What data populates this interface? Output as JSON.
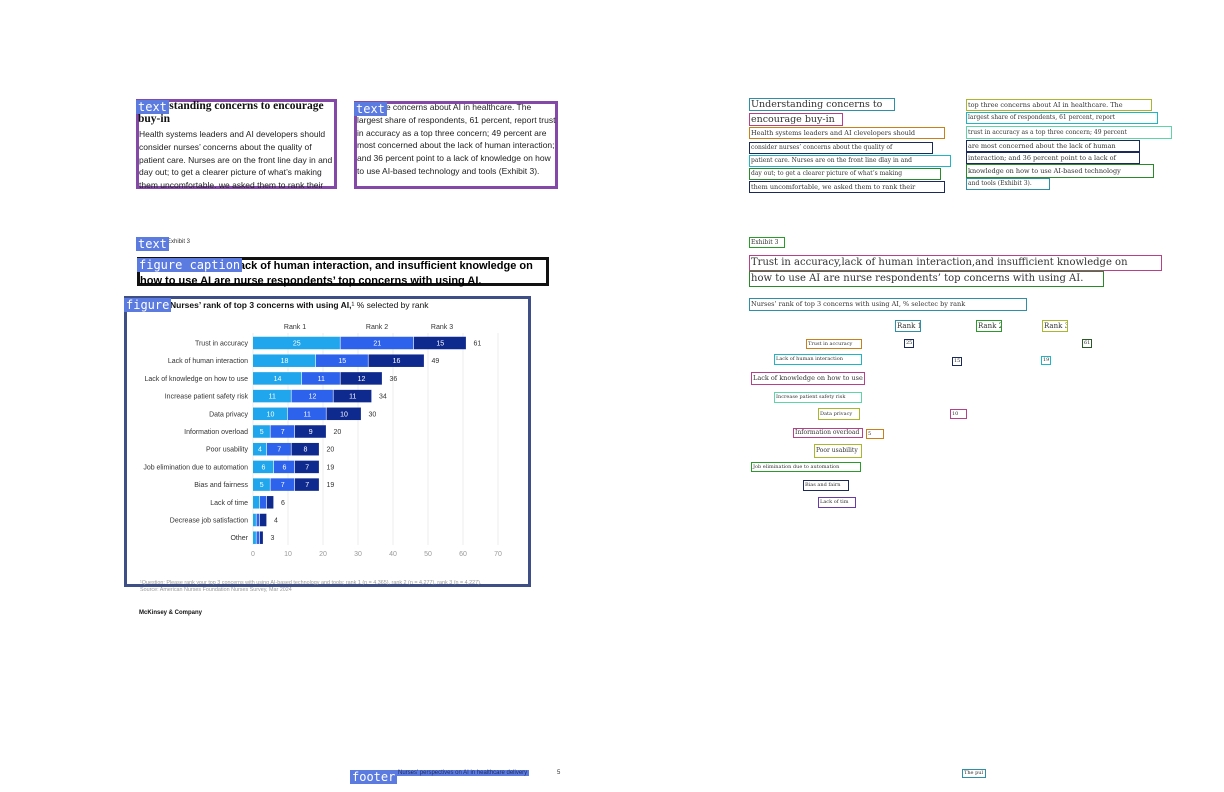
{
  "left_page": {
    "tags": {
      "text": "text",
      "figure_caption": "figure caption",
      "figure": "figure",
      "footer": "footer"
    },
    "section": {
      "heading": "Understanding concerns to encourage buy-in",
      "col1": "Health systems leaders and AI developers should consider nurses’ concerns about the quality of patient care. Nurses are on the front line day in and day out; to get a clearer picture of what’s making them uncomfortable, we asked them to rank their",
      "col2": "top three concerns about AI in healthcare. The largest share of respondents, 61 percent, report trust in accuracy as a top three concern; 49 percent are most concerned about the lack of human interaction; and 36 percent point to a lack of knowledge on how to use AI-based technology and tools (Exhibit 3)."
    },
    "exhibit_label": "Exhibit 3",
    "caption": "Trust in accuracy, lack of human interaction, and insufficient knowledge on how to use AI are nurse respondents’ top concerns with using AI.",
    "chart_subtitle_bold": "Nurses’ rank of top 3 concerns with using AI,",
    "chart_subtitle_rest": "¹ % selected by rank",
    "notes": "¹Question: Please rank your top 3 concerns with using AI-based technology and tools; rank 1 (n = 4,365), rank 2 (n = 4,277), rank 3 (n = 4,227).",
    "source": "Source: American Nurses Foundation Nurses Survey, Mar 2024",
    "brand": "McKinsey & Company",
    "footer_title": "Nurses’ perspectives on AI in healthcare delivery",
    "page_number": "5"
  },
  "chart_data": {
    "type": "bar",
    "orientation": "horizontal-stacked",
    "title": "Nurses’ rank of top 3 concerns with using AI,¹ % selected by rank",
    "categories": [
      "Trust in accuracy",
      "Lack of human interaction",
      "Lack of knowledge on how to use",
      "Increase patient safety risk",
      "Data privacy",
      "Information overload",
      "Poor usability",
      "Job elimination due to automation",
      "Bias and fairness",
      "Lack of time",
      "Decrease job satisfaction",
      "Other"
    ],
    "series": [
      {
        "name": "Rank 1",
        "color": "#1fa6ec",
        "values": [
          25,
          18,
          14,
          11,
          10,
          5,
          4,
          6,
          5,
          2,
          1,
          1
        ]
      },
      {
        "name": "Rank 2",
        "color": "#2d62ec",
        "values": [
          21,
          15,
          11,
          12,
          11,
          7,
          7,
          6,
          7,
          2,
          1,
          1
        ]
      },
      {
        "name": "Rank 3",
        "color": "#0f2a8f",
        "values": [
          15,
          16,
          12,
          11,
          10,
          9,
          8,
          7,
          7,
          2,
          2,
          1
        ]
      }
    ],
    "totals": [
      61,
      49,
      36,
      34,
      30,
      20,
      20,
      19,
      19,
      6,
      4,
      3
    ],
    "xticks": [
      0,
      10,
      20,
      30,
      40,
      50,
      60,
      70
    ],
    "xlim": [
      0,
      70
    ],
    "grid": true,
    "legend": "top"
  },
  "right_page": {
    "ocr_lines": [
      {
        "text": "Understanding concerns to",
        "color": "#2f8fa8"
      },
      {
        "text": "encourage buy-in",
        "color": "#b4418a"
      },
      {
        "text": "Health systems leaders and AI clevelopers should",
        "color": "#c9801a"
      },
      {
        "text": "consider nurses’ concerns about the quality of",
        "color": "#1c2a5a"
      },
      {
        "text": "patient care. Nurses are on the front line dlay in and",
        "color": "#1fb5c4"
      },
      {
        "text": "day out; to get a clearer picture of what’s making",
        "color": "#2a8a2a"
      },
      {
        "text": "them uncomfortable, we asked them to rank their",
        "color": "#1c2a5a"
      },
      {
        "text": "top three concerns about AI in healthcare. The",
        "color": "#a8b82a"
      },
      {
        "text": "largest share of respondents, 61 percent, report",
        "color": "#1fb5c4"
      },
      {
        "text": "trust in accuracy as a top three concern; 49 percent",
        "color": "#5fd4a8"
      },
      {
        "text": "are most concerned about the lack of human",
        "color": "#1c2a5a"
      },
      {
        "text": "interaction; and 36 percent point to a lack of",
        "color": "#1c2a5a"
      },
      {
        "text": "knowledge on how to use AI-based technology",
        "color": "#2a8a2a"
      },
      {
        "text": "and tools (Exhibit 3).",
        "color": "#2f8fa8"
      },
      {
        "text": "Exhibit 3",
        "color": "#2a9a2a"
      },
      {
        "text": "Trust in accuracy,lack of human interaction,and insufficient knowledge on",
        "color": "#b4418a"
      },
      {
        "text": "how to use AI are nurse respondents’ top concerns with using AI.",
        "color": "#2a8a2a"
      },
      {
        "text": "Nurses’ rank of top 3 concerns with using AI, % selectec by rank",
        "color": "#2f8fa8"
      },
      {
        "text": "Rank 1",
        "color": "#2f8fa8"
      },
      {
        "text": "Rank 2",
        "color": "#2a9a2a"
      },
      {
        "text": "Rank 3",
        "color": "#a8b82a"
      },
      {
        "text": "Trust in accuracy",
        "color": "#c9801a"
      },
      {
        "text": "Lack of human interaction",
        "color": "#1fb5c4"
      },
      {
        "text": "Lack of knowledge on how to use",
        "color": "#b4418a"
      },
      {
        "text": "Increase patient safety risk",
        "color": "#5fd4a8"
      },
      {
        "text": "Data privacy",
        "color": "#a8b82a"
      },
      {
        "text": "Information overload",
        "color": "#b4418a"
      },
      {
        "text": "Poor usability",
        "color": "#a8b82a"
      },
      {
        "text": "Job elimination due to automation",
        "color": "#2a9a2a"
      },
      {
        "text": "Bias and fairn",
        "color": "#1c2a5a"
      },
      {
        "text": "Lack of tim",
        "color": "#6a3aa8"
      },
      {
        "text": "25",
        "color": "#1c2a5a"
      },
      {
        "text": "15",
        "color": "#1c2a5a"
      },
      {
        "text": "19",
        "color": "#1fb5c4"
      },
      {
        "text": "10",
        "color": "#b4418a"
      },
      {
        "text": "5",
        "color": "#c9801a"
      },
      {
        "text": "61",
        "color": "#2a5a2a"
      },
      {
        "text": "The pul",
        "color": "#2f8fa8"
      }
    ]
  }
}
